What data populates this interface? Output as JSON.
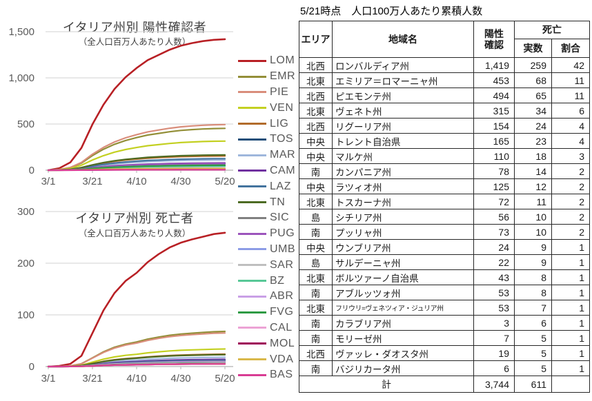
{
  "legend": [
    {
      "code": "LOM",
      "color": "#B82025"
    },
    {
      "code": "EMR",
      "color": "#938F38"
    },
    {
      "code": "PIE",
      "color": "#D98D7B"
    },
    {
      "code": "VEN",
      "color": "#C3D021"
    },
    {
      "code": "LIG",
      "color": "#B26B2B"
    },
    {
      "code": "TOS",
      "color": "#1F4E79"
    },
    {
      "code": "MAR",
      "color": "#9FB7DC"
    },
    {
      "code": "CAM",
      "color": "#7030A0"
    },
    {
      "code": "LAZ",
      "color": "#44749E"
    },
    {
      "code": "TN",
      "color": "#4D6B22"
    },
    {
      "code": "SIC",
      "color": "#808080"
    },
    {
      "code": "PUG",
      "color": "#9C54BC"
    },
    {
      "code": "UMB",
      "color": "#8C9CE6"
    },
    {
      "code": "SAR",
      "color": "#BFBFBF"
    },
    {
      "code": "BZ",
      "color": "#57C896"
    },
    {
      "code": "ABR",
      "color": "#C9A0E6"
    },
    {
      "code": "FVG",
      "color": "#2E9B44"
    },
    {
      "code": "CAL",
      "color": "#ECA3D5"
    },
    {
      "code": "MOL",
      "color": "#9E0058"
    },
    {
      "code": "VDA",
      "color": "#D9B84A"
    },
    {
      "code": "BAS",
      "color": "#D83C93"
    }
  ],
  "chart_data": [
    {
      "type": "line",
      "title": "イタリア州別 陽性確認者",
      "subtitle": "（全人口百万人あたり人数）",
      "y_max": 1500,
      "y_ticks": [
        {
          "value": 0,
          "label": "0"
        },
        {
          "value": 500,
          "label": "500"
        },
        {
          "value": 1000,
          "label": "1,000"
        },
        {
          "value": 1500,
          "label": "1,500"
        }
      ],
      "x_tick_labels": [
        "3/1",
        "3/21",
        "4/10",
        "4/30",
        "5/20"
      ],
      "x_days": [
        0,
        5,
        10,
        15,
        20,
        25,
        30,
        35,
        40,
        45,
        50,
        55,
        60,
        65,
        70,
        75,
        80
      ],
      "value_rule": "series value at each x_day = final × shape fraction (cumulative growth curve, 3/1–5/20)",
      "shape": [
        0,
        0.015,
        0.06,
        0.17,
        0.35,
        0.5,
        0.62,
        0.71,
        0.78,
        0.84,
        0.88,
        0.92,
        0.95,
        0.97,
        0.985,
        0.995,
        1.0
      ],
      "series": [
        {
          "code": "LOM",
          "final": 1419
        },
        {
          "code": "EMR",
          "final": 453
        },
        {
          "code": "PIE",
          "final": 494
        },
        {
          "code": "VEN",
          "final": 315
        },
        {
          "code": "LIG",
          "final": 154
        },
        {
          "code": "TOS",
          "final": 72
        },
        {
          "code": "MAR",
          "final": 110
        },
        {
          "code": "CAM",
          "final": 78
        },
        {
          "code": "LAZ",
          "final": 125
        },
        {
          "code": "TN",
          "final": 165
        },
        {
          "code": "SIC",
          "final": 56
        },
        {
          "code": "PUG",
          "final": 73
        },
        {
          "code": "UMB",
          "final": 24
        },
        {
          "code": "SAR",
          "final": 22
        },
        {
          "code": "BZ",
          "final": 43
        },
        {
          "code": "ABR",
          "final": 53
        },
        {
          "code": "FVG",
          "final": 53
        },
        {
          "code": "CAL",
          "final": 3
        },
        {
          "code": "MOL",
          "final": 7
        },
        {
          "code": "VDA",
          "final": 19
        },
        {
          "code": "BAS",
          "final": 6
        }
      ]
    },
    {
      "type": "line",
      "title": "イタリア州別 死亡者",
      "subtitle": "（全人口百万人あたり人数）",
      "y_max": 300,
      "y_ticks": [
        {
          "value": 0,
          "label": "0"
        },
        {
          "value": 100,
          "label": "100"
        },
        {
          "value": 200,
          "label": "200"
        },
        {
          "value": 300,
          "label": "300"
        }
      ],
      "x_tick_labels": [
        "3/1",
        "3/21",
        "4/10",
        "4/30",
        "5/20"
      ],
      "x_days": [
        0,
        5,
        10,
        15,
        20,
        25,
        30,
        35,
        40,
        45,
        50,
        55,
        60,
        65,
        70,
        75,
        80
      ],
      "value_rule": "series value at each x_day = final × shape fraction (cumulative growth curve, 3/1–5/20)",
      "shape": [
        0,
        0.005,
        0.02,
        0.08,
        0.25,
        0.42,
        0.55,
        0.64,
        0.7,
        0.78,
        0.84,
        0.89,
        0.925,
        0.95,
        0.97,
        0.99,
        1.0
      ],
      "series": [
        {
          "code": "LOM",
          "final": 259
        },
        {
          "code": "EMR",
          "final": 68
        },
        {
          "code": "PIE",
          "final": 65
        },
        {
          "code": "VEN",
          "final": 34
        },
        {
          "code": "LIG",
          "final": 24
        },
        {
          "code": "TOS",
          "final": 11
        },
        {
          "code": "MAR",
          "final": 18
        },
        {
          "code": "CAM",
          "final": 14
        },
        {
          "code": "LAZ",
          "final": 12
        },
        {
          "code": "TN",
          "final": 23
        },
        {
          "code": "SIC",
          "final": 10
        },
        {
          "code": "PUG",
          "final": 10
        },
        {
          "code": "UMB",
          "final": 9
        },
        {
          "code": "SAR",
          "final": 9
        },
        {
          "code": "BZ",
          "final": 8
        },
        {
          "code": "ABR",
          "final": 8
        },
        {
          "code": "FVG",
          "final": 7
        },
        {
          "code": "CAL",
          "final": 6
        },
        {
          "code": "MOL",
          "final": 5
        },
        {
          "code": "VDA",
          "final": 5
        },
        {
          "code": "BAS",
          "final": 5
        }
      ]
    }
  ],
  "table": {
    "title": "5/21時点　人口100万人あたり累積人数",
    "headers": {
      "area": "エリア",
      "name": "地域名",
      "positive_line1": "陽性",
      "positive_line2": "確認",
      "death": "死亡",
      "actual": "実数",
      "ratio": "割合"
    },
    "rows": [
      {
        "area": "北西",
        "name": "ロンバルディア州",
        "positive": "1,419",
        "deaths": "259",
        "ratio": "42"
      },
      {
        "area": "北東",
        "name": "エミリア＝ロマーニャ州",
        "positive": "453",
        "deaths": "68",
        "ratio": "11"
      },
      {
        "area": "北西",
        "name": "ピエモンテ州",
        "positive": "494",
        "deaths": "65",
        "ratio": "11"
      },
      {
        "area": "北東",
        "name": "ヴェネト州",
        "positive": "315",
        "deaths": "34",
        "ratio": "6"
      },
      {
        "area": "北西",
        "name": "リグーリア州",
        "positive": "154",
        "deaths": "24",
        "ratio": "4"
      },
      {
        "area": "中央",
        "name": "トレント自治県",
        "positive": "165",
        "deaths": "23",
        "ratio": "4"
      },
      {
        "area": "中央",
        "name": "マルケ州",
        "positive": "110",
        "deaths": "18",
        "ratio": "3"
      },
      {
        "area": "南",
        "name": "カンパニア州",
        "positive": "78",
        "deaths": "14",
        "ratio": "2"
      },
      {
        "area": "中央",
        "name": "ラツィオ州",
        "positive": "125",
        "deaths": "12",
        "ratio": "2"
      },
      {
        "area": "北東",
        "name": "トスカーナ州",
        "positive": "72",
        "deaths": "11",
        "ratio": "2"
      },
      {
        "area": "島",
        "name": "シチリア州",
        "positive": "56",
        "deaths": "10",
        "ratio": "2"
      },
      {
        "area": "南",
        "name": "プッリャ州",
        "positive": "73",
        "deaths": "10",
        "ratio": "2"
      },
      {
        "area": "中央",
        "name": "ウンブリア州",
        "positive": "24",
        "deaths": "9",
        "ratio": "1"
      },
      {
        "area": "島",
        "name": "サルデーニャ州",
        "positive": "22",
        "deaths": "9",
        "ratio": "1"
      },
      {
        "area": "北東",
        "name": "ボルツァーノ自治県",
        "positive": "43",
        "deaths": "8",
        "ratio": "1"
      },
      {
        "area": "南",
        "name": "アブルッツォ州",
        "positive": "53",
        "deaths": "8",
        "ratio": "1"
      },
      {
        "area": "北東",
        "name": "フリウリ=ヴェネツィア・ジュリア州",
        "positive": "53",
        "deaths": "7",
        "ratio": "1",
        "small": true
      },
      {
        "area": "南",
        "name": "カラブリア州",
        "positive": "3",
        "deaths": "6",
        "ratio": "1"
      },
      {
        "area": "南",
        "name": "モリーゼ州",
        "positive": "7",
        "deaths": "5",
        "ratio": "1"
      },
      {
        "area": "北西",
        "name": "ヴァッレ・ダオスタ州",
        "positive": "19",
        "deaths": "5",
        "ratio": "1"
      },
      {
        "area": "南",
        "name": "バジリカータ州",
        "positive": "6",
        "deaths": "5",
        "ratio": "1"
      }
    ],
    "total": {
      "label": "計",
      "positive": "3,744",
      "deaths": "611",
      "ratio": ""
    }
  }
}
